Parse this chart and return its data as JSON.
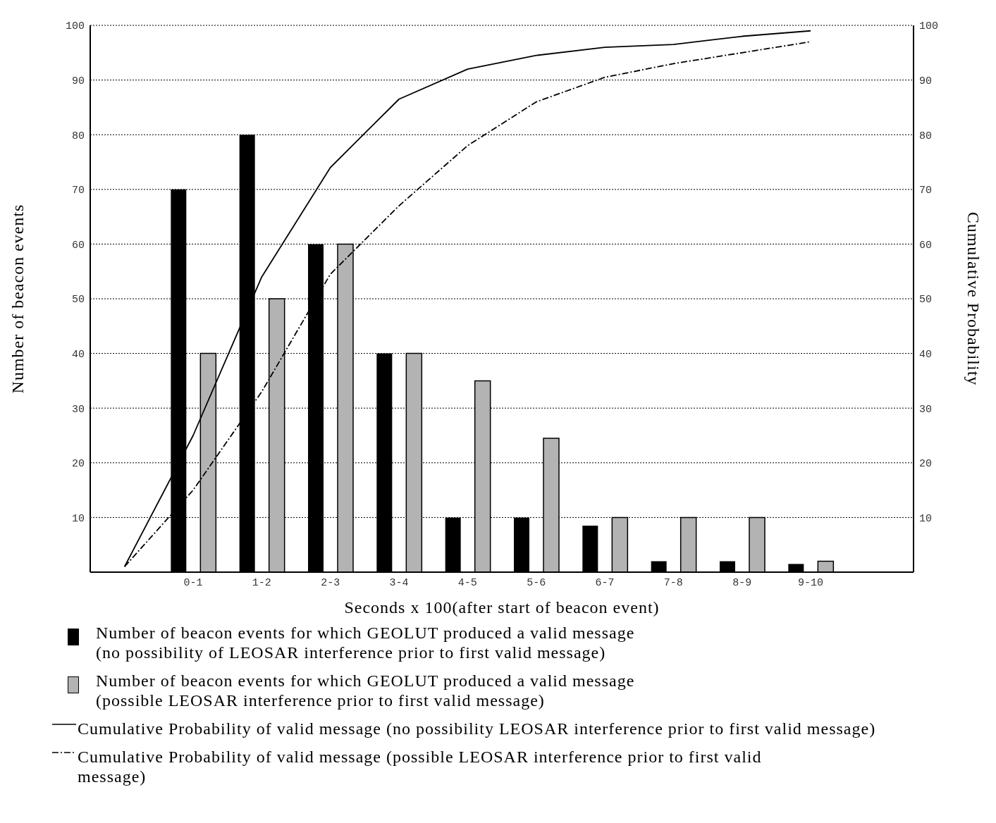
{
  "chart_data": {
    "type": "bar",
    "xlabel": "Seconds x 100(after start of beacon event)",
    "ylabel": "Number of beacon events",
    "y2label": "Cumulative Probability",
    "categories": [
      null,
      "0-1",
      "1-2",
      "2-3",
      "3-4",
      "4-5",
      "5-6",
      "6-7",
      "7-8",
      "8-9",
      "9-10",
      null
    ],
    "series": [
      {
        "name": "Number of beacon events for which GEOLUT produced a valid message (no possibility of LEOSAR interference prior to first valid message)",
        "color": "#000000",
        "values": [
          null,
          70,
          80,
          60,
          40,
          10,
          10,
          8.5,
          2,
          2,
          1.5,
          null
        ]
      },
      {
        "name": "Number of beacon events for which GEOLUT produced a valid message (possible LEOSAR interference prior to first valid message)",
        "color": "#b3b3b3",
        "values": [
          null,
          40,
          50,
          60,
          40,
          35,
          24.5,
          10,
          10,
          10,
          2,
          null
        ]
      },
      {
        "name": "Cumulative Probability of valid message (no possibility LEOSAR interference prior to first valid message)",
        "type": "line",
        "axis": "y2",
        "line_style": "solid",
        "color": "#000000",
        "values": [
          1,
          25,
          54,
          74,
          86.5,
          92,
          94.5,
          96,
          96.5,
          98,
          99,
          null
        ]
      },
      {
        "name": "Cumulative Probability of valid message (possible LEOSAR interference prior to first valid message)",
        "type": "line",
        "axis": "y2",
        "line_style": "dashed",
        "color": "#000000",
        "values": [
          1,
          15,
          33,
          54.5,
          67,
          78,
          86,
          90.5,
          93,
          95,
          97,
          null
        ]
      }
    ],
    "ylim": [
      0,
      100
    ],
    "yticks": [
      10,
      20,
      30,
      40,
      50,
      60,
      70,
      80,
      90,
      100
    ],
    "y2lim": [
      0,
      100
    ],
    "y2ticks": [
      10,
      20,
      30,
      40,
      50,
      60,
      70,
      80,
      90,
      100
    ],
    "grid": "y",
    "legend": "bottom",
    "marker": "none"
  }
}
